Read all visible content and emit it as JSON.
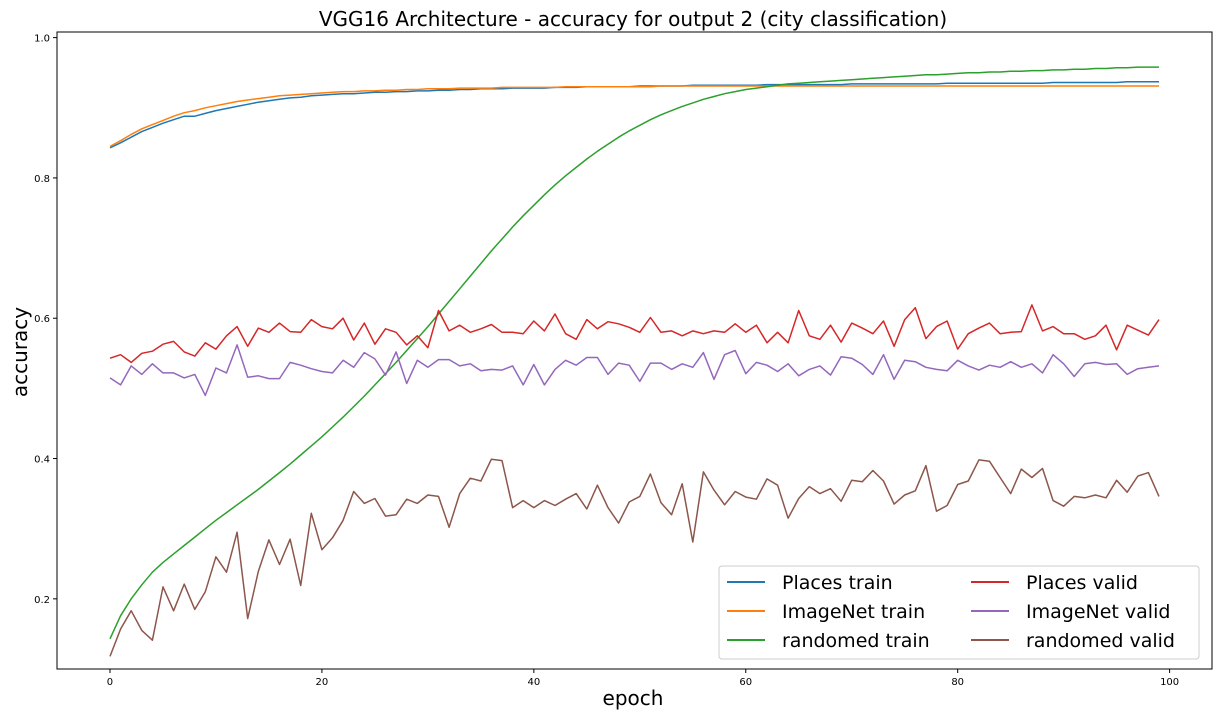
{
  "chart_data": {
    "type": "line",
    "title": "VGG16 Architecture - accuracy for output 2 (city classification)",
    "xlabel": "epoch",
    "ylabel": "accuracy",
    "xlim": [
      -5,
      104
    ],
    "ylim": [
      0.1,
      1.008
    ],
    "xticks": [
      0,
      20,
      40,
      60,
      80,
      100
    ],
    "yticks": [
      0.2,
      0.4,
      0.6,
      0.8,
      1.0
    ],
    "xtick_labels": [
      "0",
      "20",
      "40",
      "60",
      "80",
      "100"
    ],
    "ytick_labels": [
      "0.2",
      "0.4",
      "0.6",
      "0.8",
      "1.0"
    ],
    "grid": false,
    "legend_position": "lower-right",
    "legend_columns": 2,
    "series": [
      {
        "name": "Places train",
        "color": "#1f77b4",
        "values": [
          0.843,
          0.85,
          0.858,
          0.866,
          0.872,
          0.878,
          0.883,
          0.888,
          0.888,
          0.892,
          0.896,
          0.899,
          0.902,
          0.905,
          0.908,
          0.91,
          0.912,
          0.914,
          0.915,
          0.917,
          0.918,
          0.919,
          0.92,
          0.92,
          0.921,
          0.922,
          0.922,
          0.923,
          0.923,
          0.924,
          0.924,
          0.925,
          0.925,
          0.926,
          0.926,
          0.927,
          0.927,
          0.927,
          0.928,
          0.928,
          0.928,
          0.928,
          0.929,
          0.929,
          0.929,
          0.93,
          0.93,
          0.93,
          0.93,
          0.93,
          0.931,
          0.931,
          0.931,
          0.931,
          0.931,
          0.932,
          0.932,
          0.932,
          0.932,
          0.932,
          0.932,
          0.932,
          0.933,
          0.933,
          0.933,
          0.933,
          0.933,
          0.933,
          0.933,
          0.933,
          0.934,
          0.934,
          0.934,
          0.934,
          0.934,
          0.934,
          0.934,
          0.934,
          0.934,
          0.935,
          0.935,
          0.935,
          0.935,
          0.935,
          0.935,
          0.935,
          0.935,
          0.935,
          0.935,
          0.936,
          0.936,
          0.936,
          0.936,
          0.936,
          0.936,
          0.936,
          0.937,
          0.937,
          0.937,
          0.937
        ]
      },
      {
        "name": "ImageNet train",
        "color": "#ff7f0e",
        "values": [
          0.845,
          0.853,
          0.862,
          0.87,
          0.876,
          0.882,
          0.888,
          0.893,
          0.896,
          0.9,
          0.903,
          0.906,
          0.909,
          0.911,
          0.913,
          0.915,
          0.917,
          0.918,
          0.919,
          0.92,
          0.921,
          0.922,
          0.923,
          0.923,
          0.924,
          0.924,
          0.925,
          0.925,
          0.926,
          0.926,
          0.927,
          0.927,
          0.927,
          0.928,
          0.928,
          0.928,
          0.928,
          0.929,
          0.929,
          0.929,
          0.929,
          0.929,
          0.929,
          0.93,
          0.93,
          0.93,
          0.93,
          0.93,
          0.93,
          0.93,
          0.93,
          0.93,
          0.931,
          0.931,
          0.931,
          0.931,
          0.931,
          0.931,
          0.931,
          0.931,
          0.931,
          0.931,
          0.931,
          0.931,
          0.931,
          0.931,
          0.931,
          0.931,
          0.931,
          0.931,
          0.931,
          0.931,
          0.931,
          0.931,
          0.931,
          0.931,
          0.931,
          0.931,
          0.931,
          0.931,
          0.931,
          0.931,
          0.931,
          0.931,
          0.931,
          0.931,
          0.931,
          0.931,
          0.931,
          0.931,
          0.931,
          0.931,
          0.931,
          0.931,
          0.931,
          0.931,
          0.931,
          0.931,
          0.931,
          0.931
        ]
      },
      {
        "name": "randomed train",
        "color": "#2ca02c",
        "values": [
          0.143,
          0.176,
          0.2,
          0.22,
          0.238,
          0.252,
          0.264,
          0.276,
          0.288,
          0.3,
          0.312,
          0.323,
          0.334,
          0.345,
          0.356,
          0.368,
          0.38,
          0.392,
          0.405,
          0.418,
          0.431,
          0.445,
          0.459,
          0.474,
          0.489,
          0.505,
          0.521,
          0.537,
          0.554,
          0.571,
          0.588,
          0.606,
          0.624,
          0.642,
          0.66,
          0.678,
          0.696,
          0.713,
          0.73,
          0.746,
          0.761,
          0.776,
          0.79,
          0.803,
          0.815,
          0.827,
          0.838,
          0.848,
          0.858,
          0.867,
          0.875,
          0.883,
          0.89,
          0.896,
          0.902,
          0.907,
          0.912,
          0.916,
          0.92,
          0.923,
          0.926,
          0.928,
          0.93,
          0.932,
          0.934,
          0.935,
          0.936,
          0.937,
          0.938,
          0.939,
          0.94,
          0.941,
          0.942,
          0.943,
          0.944,
          0.945,
          0.946,
          0.947,
          0.947,
          0.948,
          0.949,
          0.95,
          0.95,
          0.951,
          0.951,
          0.952,
          0.952,
          0.953,
          0.953,
          0.954,
          0.954,
          0.955,
          0.955,
          0.956,
          0.956,
          0.957,
          0.957,
          0.958,
          0.958,
          0.958
        ]
      },
      {
        "name": "Places valid",
        "color": "#d62728",
        "values": [
          0.543,
          0.548,
          0.537,
          0.55,
          0.553,
          0.563,
          0.567,
          0.552,
          0.546,
          0.565,
          0.556,
          0.575,
          0.588,
          0.56,
          0.586,
          0.58,
          0.593,
          0.581,
          0.58,
          0.598,
          0.588,
          0.585,
          0.6,
          0.569,
          0.593,
          0.563,
          0.585,
          0.58,
          0.562,
          0.575,
          0.558,
          0.611,
          0.582,
          0.59,
          0.58,
          0.585,
          0.591,
          0.58,
          0.58,
          0.578,
          0.596,
          0.582,
          0.606,
          0.578,
          0.57,
          0.598,
          0.585,
          0.595,
          0.592,
          0.587,
          0.58,
          0.601,
          0.58,
          0.582,
          0.575,
          0.582,
          0.578,
          0.582,
          0.58,
          0.592,
          0.58,
          0.59,
          0.565,
          0.58,
          0.565,
          0.611,
          0.575,
          0.57,
          0.59,
          0.566,
          0.593,
          0.586,
          0.578,
          0.596,
          0.56,
          0.598,
          0.615,
          0.571,
          0.588,
          0.596,
          0.556,
          0.578,
          0.586,
          0.593,
          0.578,
          0.58,
          0.581,
          0.619,
          0.582,
          0.588,
          0.578,
          0.578,
          0.57,
          0.575,
          0.59,
          0.555,
          0.59,
          0.583,
          0.576,
          0.598
        ]
      },
      {
        "name": "ImageNet valid",
        "color": "#9467bd",
        "values": [
          0.515,
          0.505,
          0.532,
          0.52,
          0.535,
          0.522,
          0.522,
          0.515,
          0.52,
          0.49,
          0.529,
          0.522,
          0.562,
          0.516,
          0.518,
          0.514,
          0.514,
          0.537,
          0.533,
          0.528,
          0.524,
          0.522,
          0.54,
          0.53,
          0.551,
          0.542,
          0.519,
          0.552,
          0.507,
          0.54,
          0.53,
          0.541,
          0.541,
          0.532,
          0.535,
          0.525,
          0.527,
          0.526,
          0.532,
          0.505,
          0.534,
          0.505,
          0.527,
          0.54,
          0.533,
          0.544,
          0.544,
          0.52,
          0.536,
          0.533,
          0.51,
          0.536,
          0.536,
          0.527,
          0.535,
          0.53,
          0.551,
          0.513,
          0.548,
          0.554,
          0.521,
          0.537,
          0.533,
          0.524,
          0.535,
          0.518,
          0.527,
          0.532,
          0.519,
          0.545,
          0.543,
          0.534,
          0.52,
          0.548,
          0.513,
          0.54,
          0.538,
          0.53,
          0.527,
          0.525,
          0.54,
          0.532,
          0.526,
          0.533,
          0.53,
          0.538,
          0.53,
          0.535,
          0.522,
          0.548,
          0.535,
          0.517,
          0.535,
          0.537,
          0.534,
          0.535,
          0.52,
          0.528,
          0.53,
          0.532
        ]
      },
      {
        "name": "randomed valid",
        "color": "#8c564b",
        "values": [
          0.118,
          0.157,
          0.183,
          0.155,
          0.141,
          0.217,
          0.183,
          0.221,
          0.185,
          0.21,
          0.26,
          0.238,
          0.295,
          0.172,
          0.239,
          0.284,
          0.249,
          0.285,
          0.219,
          0.322,
          0.27,
          0.287,
          0.312,
          0.353,
          0.336,
          0.343,
          0.318,
          0.32,
          0.342,
          0.336,
          0.348,
          0.346,
          0.302,
          0.35,
          0.372,
          0.368,
          0.399,
          0.397,
          0.33,
          0.34,
          0.33,
          0.34,
          0.333,
          0.342,
          0.35,
          0.328,
          0.362,
          0.33,
          0.308,
          0.338,
          0.346,
          0.378,
          0.337,
          0.32,
          0.364,
          0.281,
          0.381,
          0.355,
          0.334,
          0.353,
          0.345,
          0.342,
          0.371,
          0.362,
          0.315,
          0.343,
          0.36,
          0.35,
          0.357,
          0.339,
          0.369,
          0.367,
          0.383,
          0.368,
          0.335,
          0.348,
          0.354,
          0.39,
          0.325,
          0.333,
          0.363,
          0.368,
          0.398,
          0.396,
          0.373,
          0.35,
          0.385,
          0.373,
          0.386,
          0.34,
          0.332,
          0.346,
          0.344,
          0.348,
          0.344,
          0.369,
          0.352,
          0.375,
          0.38,
          0.346
        ]
      }
    ]
  }
}
